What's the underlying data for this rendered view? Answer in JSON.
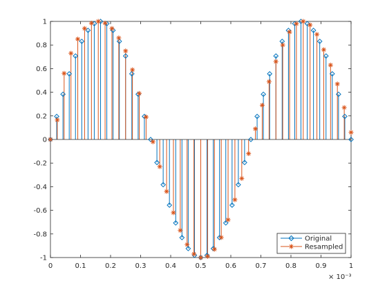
{
  "chart_data": {
    "type": "stem",
    "xlim": [
      0,
      1
    ],
    "ylim": [
      -1,
      1
    ],
    "x_exponent_label": "× 10⁻³",
    "x_ticks": [
      "0",
      "0.1",
      "0.2",
      "0.3",
      "0.4",
      "0.5",
      "0.6",
      "0.7",
      "0.8",
      "0.9",
      "1"
    ],
    "y_ticks": [
      "-1",
      "-0.8",
      "-0.6",
      "-0.4",
      "-0.2",
      "0",
      "0.2",
      "0.4",
      "0.6",
      "0.8",
      "1"
    ],
    "legend": {
      "placement": "bottom-right"
    },
    "series": [
      {
        "name": "Original",
        "color": "#0072BD",
        "marker": "diamond",
        "x": [
          0,
          0.0208,
          0.0417,
          0.0625,
          0.0833,
          0.1042,
          0.125,
          0.1458,
          0.1667,
          0.1875,
          0.2083,
          0.2292,
          0.25,
          0.2708,
          0.2917,
          0.3125,
          0.3333,
          0.3542,
          0.375,
          0.3958,
          0.4167,
          0.4375,
          0.4583,
          0.4792,
          0.5,
          0.5208,
          0.5417,
          0.5625,
          0.5833,
          0.6042,
          0.625,
          0.6458,
          0.6667,
          0.6875,
          0.7083,
          0.7292,
          0.75,
          0.7708,
          0.7917,
          0.8125,
          0.8333,
          0.8542,
          0.875,
          0.8958,
          0.9167,
          0.9375,
          0.9583,
          0.9792,
          1
        ],
        "y": [
          0,
          0.195,
          0.383,
          0.556,
          0.707,
          0.831,
          0.924,
          0.981,
          1,
          0.981,
          0.924,
          0.831,
          0.707,
          0.556,
          0.383,
          0.195,
          0,
          -0.195,
          -0.383,
          -0.556,
          -0.707,
          -0.831,
          -0.924,
          -0.981,
          -1,
          -0.981,
          -0.924,
          -0.831,
          -0.707,
          -0.556,
          -0.383,
          -0.195,
          0,
          0.195,
          0.383,
          0.556,
          0.707,
          0.831,
          0.924,
          0.981,
          1,
          0.981,
          0.924,
          0.831,
          0.707,
          0.556,
          0.383,
          0.195,
          0
        ]
      },
      {
        "name": "Resampled",
        "color": "#D95319",
        "marker": "asterisk",
        "x": [
          0,
          0.0227,
          0.0455,
          0.0682,
          0.0909,
          0.1136,
          0.1364,
          0.1591,
          0.1818,
          0.2045,
          0.2273,
          0.25,
          0.2727,
          0.2955,
          0.3182,
          0.3409,
          0.3636,
          0.3864,
          0.4091,
          0.4318,
          0.4545,
          0.4773,
          0.5,
          0.5227,
          0.5455,
          0.5682,
          0.5909,
          0.6136,
          0.6364,
          0.6591,
          0.6818,
          0.7045,
          0.7273,
          0.75,
          0.7727,
          0.7955,
          0.8182,
          0.8409,
          0.8636,
          0.8864,
          0.9091,
          0.9318,
          0.9545,
          0.9773,
          1
        ],
        "y": [
          0,
          0.165,
          0.56,
          0.73,
          0.85,
          0.94,
          0.985,
          1,
          0.985,
          0.94,
          0.86,
          0.75,
          0.59,
          0.39,
          0.19,
          -0.02,
          -0.23,
          -0.44,
          -0.62,
          -0.77,
          -0.89,
          -0.97,
          -1,
          -0.99,
          -0.93,
          -0.83,
          -0.68,
          -0.51,
          -0.33,
          -0.12,
          0.09,
          0.29,
          0.49,
          0.66,
          0.8,
          0.91,
          0.98,
          1,
          0.97,
          0.89,
          0.76,
          0.63,
          0.47,
          0.27,
          0.06
        ]
      }
    ]
  }
}
